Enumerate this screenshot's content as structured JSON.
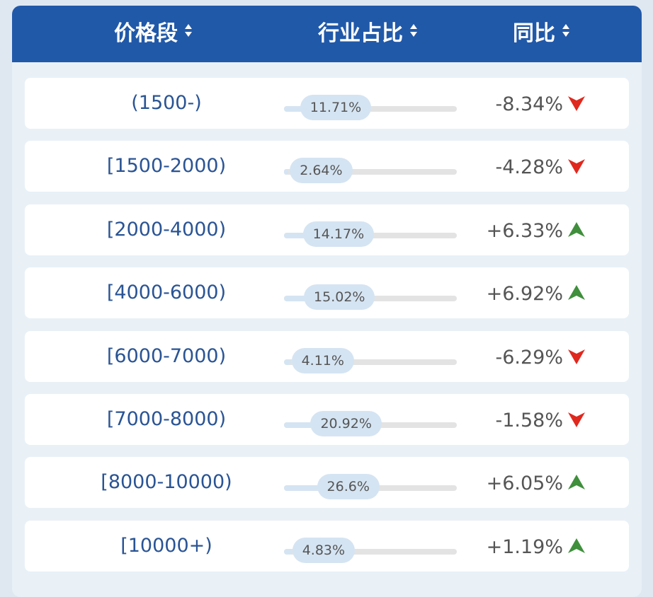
{
  "table": {
    "header": [
      "价格段",
      "行业占比",
      "同比"
    ],
    "rows": [
      {
        "range": "(1500-)",
        "share": 11.71,
        "share_label": "11.71%",
        "change": -8.34,
        "change_label": "-8.34%"
      },
      {
        "range": "[1500-2000)",
        "share": 2.64,
        "share_label": "2.64%",
        "change": -4.28,
        "change_label": "-4.28%"
      },
      {
        "range": "[2000-4000)",
        "share": 14.17,
        "share_label": "14.17%",
        "change": 6.33,
        "change_label": "+6.33%"
      },
      {
        "range": "[4000-6000)",
        "share": 15.02,
        "share_label": "15.02%",
        "change": 6.92,
        "change_label": "+6.92%"
      },
      {
        "range": "[6000-7000)",
        "share": 4.11,
        "share_label": "4.11%",
        "change": -6.29,
        "change_label": "-6.29%"
      },
      {
        "range": "[7000-8000)",
        "share": 20.92,
        "share_label": "20.92%",
        "change": -1.58,
        "change_label": "-1.58%"
      },
      {
        "range": "[8000-10000)",
        "share": 26.6,
        "share_label": "26.6%",
        "change": 6.05,
        "change_label": "+6.05%"
      },
      {
        "range": "[10000+)",
        "share": 4.83,
        "share_label": "4.83%",
        "change": 1.19,
        "change_label": "+1.19%"
      }
    ]
  }
}
